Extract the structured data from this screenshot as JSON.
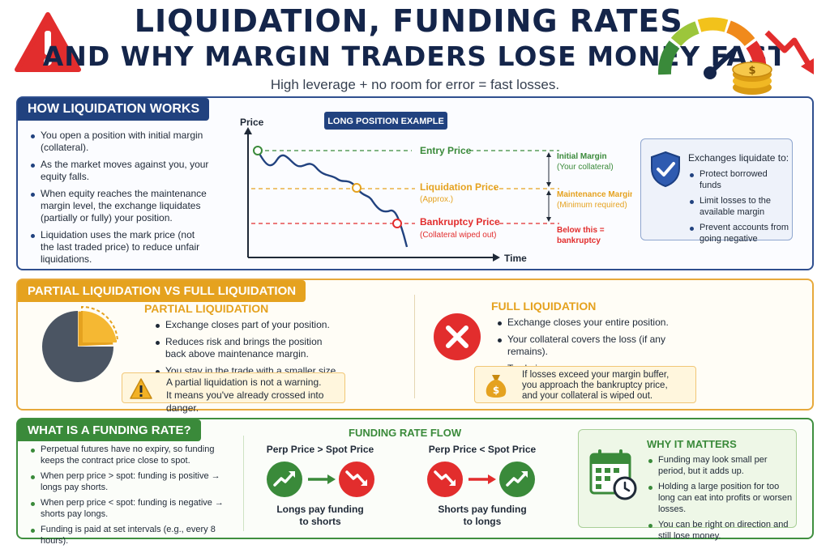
{
  "header": {
    "title_line1": "LIQUIDATION, FUNDING RATES,",
    "title_line2": "AND WHY MARGIN TRADERS LOSE MONEY FAST",
    "subtitle": "High leverage + no room for error = fast losses.",
    "icons": [
      "warning-icon",
      "gauge-icon",
      "coins-icon",
      "down-arrow-icon"
    ],
    "colors": {
      "navy": "#14254a",
      "red": "#e22d2d",
      "orange": "#e5a21f",
      "green": "#3a8a3a"
    }
  },
  "liquidation": {
    "tab": "HOW LIQUIDATION WORKS",
    "bullets": [
      "You open a position with initial margin (collateral).",
      "As the market moves against you, your equity falls.",
      "When equity reaches the maintenance margin level, the exchange liquidates (partially or fully) your position.",
      "Liquidation uses the mark price (not the last traded price) to reduce unfair liquidations."
    ],
    "chart": {
      "badge": "LONG POSITION EXAMPLE",
      "y_axis": "Price",
      "x_axis": "Time",
      "entry_label": "Entry Price",
      "liq_label": "Liquidation Price",
      "liq_sub": "(Approx.)",
      "bank_label": "Bankruptcy Price",
      "bank_sub": "(Collateral wiped out)",
      "initial_margin": "Initial Margin",
      "initial_margin_sub": "(Your collateral)",
      "maint_margin": "Maintenance Margin",
      "maint_margin_sub": "(Minimum required)",
      "below_line1": "Below this =",
      "below_line2": "bankruptcy"
    },
    "exchanges": {
      "title": "Exchanges liquidate to:",
      "items": [
        "Protect borrowed funds",
        "Limit losses to the available margin",
        "Prevent accounts from going negative"
      ],
      "icon": "shield-check-icon"
    }
  },
  "partial_full": {
    "tab": "PARTIAL LIQUIDATION VS FULL LIQUIDATION",
    "partial": {
      "title": "PARTIAL LIQUIDATION",
      "bullets": [
        "Exchange closes part of your position.",
        "Reduces risk and brings the position back above maintenance margin.",
        "You stay in the trade with a smaller size."
      ],
      "note_line1": "A partial liquidation is not a warning.",
      "note_line2": "It means you've already crossed into danger."
    },
    "full": {
      "title": "FULL LIQUIDATION",
      "bullets": [
        "Exchange closes your entire position.",
        "Your collateral covers the loss (if any remains).",
        "Trade is over."
      ],
      "note_line1": "If losses exceed your margin buffer,",
      "note_line2": "you approach the bankruptcy price,",
      "note_line3": "and your collateral is wiped out."
    }
  },
  "funding": {
    "tab": "WHAT IS A FUNDING RATE?",
    "bullets": [
      "Perpetual futures have no expiry, so funding keeps the contract price close to spot.",
      "When perp price > spot: funding is positive → longs pay shorts.",
      "When perp price < spot: funding is negative → shorts pay longs.",
      "Funding is paid at set intervals (e.g., every 8 hours)."
    ],
    "flow": {
      "title": "FUNDING RATE FLOW",
      "left_head": "Perp Price > Spot Price",
      "left_line1": "Longs pay funding",
      "left_line2": "to shorts",
      "right_head": "Perp Price < Spot Price",
      "right_line1": "Shorts pay funding",
      "right_line2": "to longs"
    },
    "why": {
      "title": "WHY IT MATTERS",
      "items": [
        "Funding may look small per period, but it adds up.",
        "Holding a large position for too long can eat into profits or worsen losses.",
        "You can be right on direction and still lose money."
      ],
      "icon": "calendar-clock-icon"
    }
  }
}
